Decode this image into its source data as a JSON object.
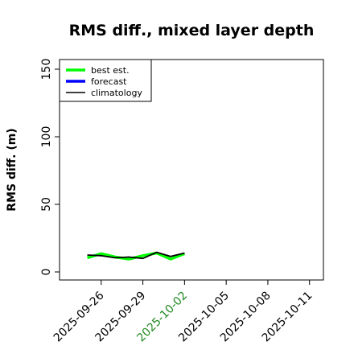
{
  "chart_data": {
    "type": "line",
    "title": "RMS diff., mixed layer depth",
    "ylabel": "RMS diff. (m)",
    "xlabel": "",
    "ylim": [
      0,
      150
    ],
    "yticks": [
      0,
      50,
      100,
      150
    ],
    "xlim": [
      "2025-09-23",
      "2025-10-12"
    ],
    "xticks": [
      "2025-09-26",
      "2025-09-29",
      "2025-10-02",
      "2025-10-05",
      "2025-10-08",
      "2025-10-11"
    ],
    "highlight_tick": "2025-10-02",
    "highlight_color": "#228b22",
    "legend_position": "top-left",
    "grid": false,
    "series": [
      {
        "name": "best est.",
        "color": "#00ff00",
        "width": 3.5,
        "x": [
          "2025-09-25",
          "2025-09-26",
          "2025-09-27",
          "2025-09-28",
          "2025-09-29",
          "2025-09-30",
          "2025-10-01",
          "2025-10-02"
        ],
        "values": [
          10.5,
          13.5,
          11,
          9.5,
          12,
          14,
          9.5,
          13.5
        ]
      },
      {
        "name": "forecast",
        "color": "#0000ff",
        "width": 3.5,
        "x": [],
        "values": []
      },
      {
        "name": "climatology",
        "color": "#000000",
        "width": 1.8,
        "x": [
          "2025-09-25",
          "2025-09-26",
          "2025-09-27",
          "2025-09-28",
          "2025-09-29",
          "2025-09-30",
          "2025-10-01",
          "2025-10-02"
        ],
        "values": [
          12.5,
          12,
          10.5,
          11,
          10,
          14.5,
          11.5,
          14
        ]
      }
    ]
  }
}
